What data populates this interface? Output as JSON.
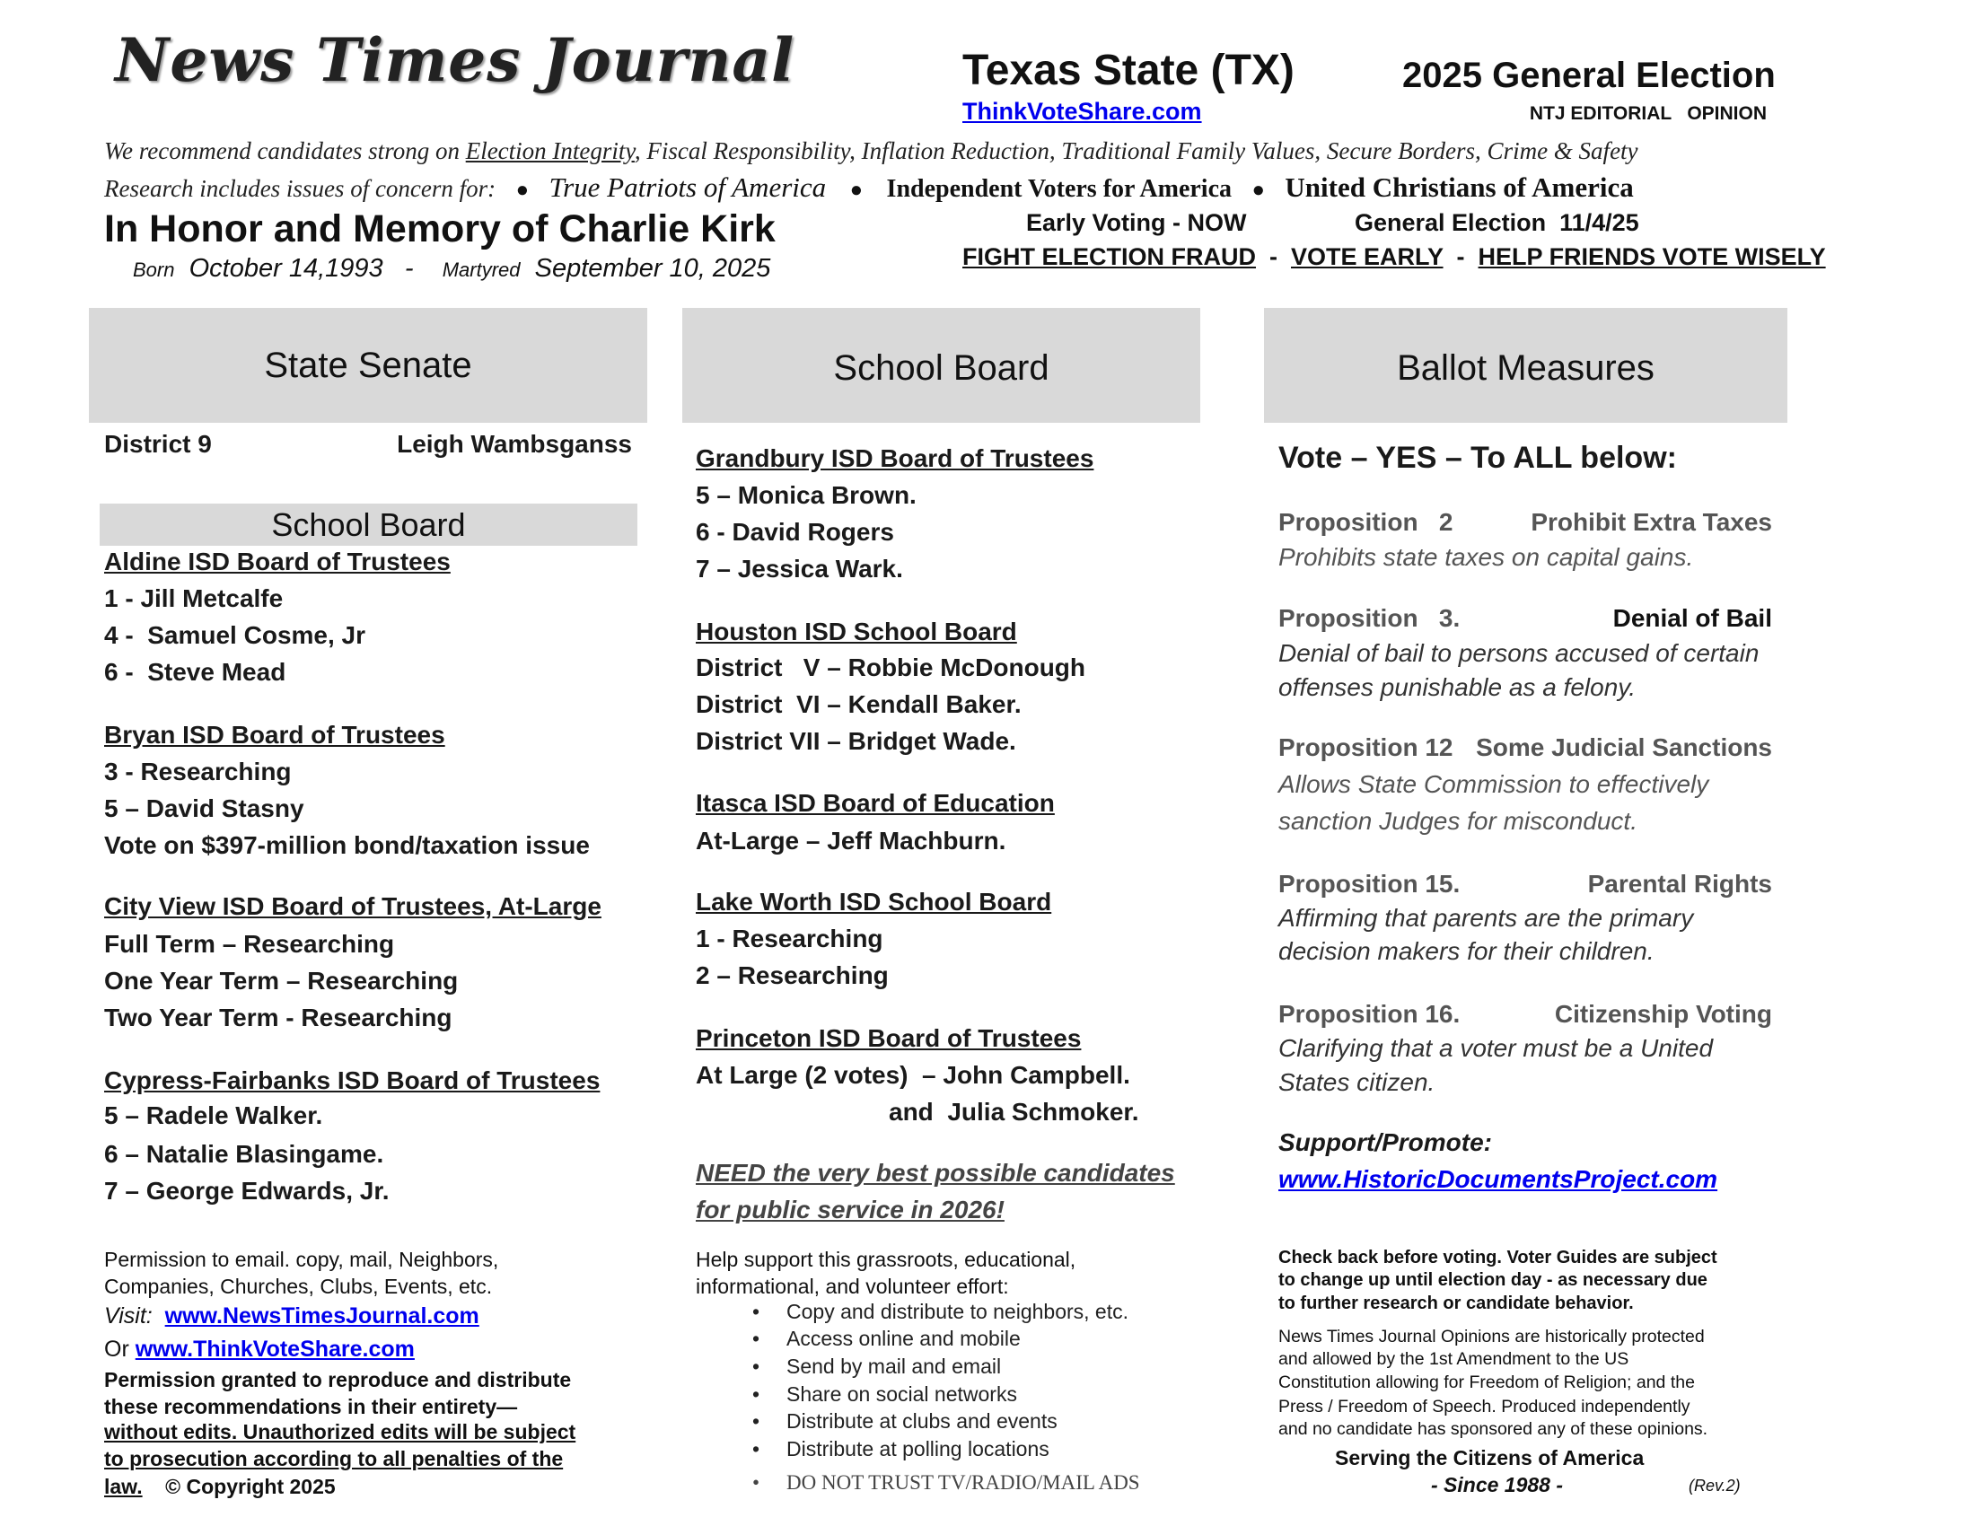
{
  "header": {
    "logo": "News Times Journal",
    "state": "Texas State (TX)",
    "election": "2025 General Election",
    "site_link": "ThinkVoteShare.com",
    "editorial": "NTJ EDITORIAL   OPINION",
    "recommend_prefix": "We recommend candidates strong on ",
    "recommend_underlined": "Election Integrity",
    "recommend_suffix": ", Fiscal Responsibility, Inflation Reduction, Traditional Family Values, Secure Borders, Crime & Safety",
    "research_prefix": "Research includes issues of concern for:",
    "orgs": [
      "True Patriots of America",
      "Independent Voters for America",
      "United Christians of America"
    ],
    "honor": "In Honor and Memory of Charlie Kirk",
    "born_label": "Born",
    "born_date": "October 14,1993",
    "martyred_label": "Martyred",
    "martyred_date": "September 10, 2025",
    "early_voting": "Early Voting - NOW",
    "general_election": "General Election  11/4/25",
    "slogans": [
      "FIGHT ELECTION FRAUD",
      "VOTE EARLY",
      "HELP FRIENDS VOTE WISELY"
    ]
  },
  "col1": {
    "header": "State Senate",
    "district_label": "District 9",
    "district_candidate": "Leigh Wambsganss",
    "subheader": "School Board",
    "lines": [
      {
        "t": "Aldine ISD Board of Trustees",
        "u": true
      },
      {
        "t": "1 - Jill Metcalfe"
      },
      {
        "t": "4 -  Samuel Cosme, Jr"
      },
      {
        "t": "6 -  Steve Mead"
      },
      {
        "t": "Bryan ISD Board of Trustees",
        "u": true
      },
      {
        "t": "3 - Researching"
      },
      {
        "t": "5 – David Stasny"
      },
      {
        "t": "Vote on $397-million bond/taxation issue"
      },
      {
        "t": "City View ISD Board of Trustees, At-Large",
        "u": true
      },
      {
        "t": "Full Term – Researching"
      },
      {
        "t": "One Year Term – Researching"
      },
      {
        "t": "Two Year Term - Researching"
      },
      {
        "t": "Cypress-Fairbanks ISD Board of Trustees",
        "u": true
      },
      {
        "t": "5 – Radele Walker."
      },
      {
        "t": "6 – Natalie Blasingame."
      },
      {
        "t": "7 – George Edwards, Jr."
      }
    ],
    "footer": {
      "permission1": "Permission to email. copy, mail, Neighbors,",
      "permission2": "Companies, Churches, Clubs, Events, etc.",
      "visit_label": "Visit:",
      "visit_link": "www.NewsTimesJournal.com",
      "or_label": "Or",
      "or_link": "www.ThinkVoteShare.com",
      "granted1": "Permission granted to reproduce and distribute",
      "granted2": "these recommendations in their entirety—",
      "granted3": "without edits. Unauthorized edits will be subject",
      "granted4": "to prosecution according to all penalties of the",
      "granted5": "law.",
      "copyright": "© Copyright 2025"
    }
  },
  "col2": {
    "header": "School Board",
    "lines": [
      {
        "t": "Grandbury ISD Board of Trustees",
        "u": true
      },
      {
        "t": "5 – Monica Brown."
      },
      {
        "t": "6 - David Rogers"
      },
      {
        "t": "7 – Jessica Wark."
      },
      {
        "t": "Houston ISD School Board",
        "u": true
      },
      {
        "t": "District   V – Robbie McDonough"
      },
      {
        "t": "District  VI – Kendall Baker."
      },
      {
        "t": "District VII – Bridget Wade."
      },
      {
        "t": "Itasca ISD Board of Education",
        "u": true
      },
      {
        "t": "At-Large – Jeff Machburn."
      },
      {
        "t": "Lake Worth ISD School Board",
        "u": true
      },
      {
        "t": "1 - Researching"
      },
      {
        "t": "2 – Researching"
      },
      {
        "t": "Princeton ISD Board of Trustees",
        "u": true
      },
      {
        "t": "At Large (2 votes)  – John Campbell."
      },
      {
        "t": "and  Julia Schmoker."
      }
    ],
    "need1": "NEED the very best possible candidates",
    "need2": "for public service in 2026!",
    "help1": "Help support this grassroots, educational,",
    "help2": "informational, and volunteer effort:",
    "bullets": [
      "Copy and distribute to neighbors, etc.",
      "Access online and mobile",
      "Send by mail and email",
      "Share on social networks",
      "Distribute at clubs and events",
      "Distribute at polling locations",
      "DO NOT TRUST TV/RADIO/MAIL ADS"
    ]
  },
  "col3": {
    "header": "Ballot Measures",
    "vote_all": "Vote – YES – To ALL below:",
    "props": [
      {
        "num": "Proposition   2",
        "title": "Prohibit Extra Taxes",
        "desc": [
          "Prohibits state taxes on capital gains."
        ]
      },
      {
        "num": "Proposition   3.",
        "title": "Denial of Bail",
        "desc": [
          "Denial of bail to persons accused of certain",
          "offenses punishable as a felony."
        ]
      },
      {
        "num": "Proposition 12",
        "title": "Some Judicial Sanctions",
        "desc": [
          "Allows State Commission to effectively",
          "sanction Judges for misconduct."
        ]
      },
      {
        "num": "Proposition 15.",
        "title": "Parental Rights",
        "desc": [
          "Affirming that parents are the primary",
          "decision makers for their children."
        ]
      },
      {
        "num": "Proposition 16.",
        "title": "Citizenship Voting",
        "desc": [
          "Clarifying that a voter must be a United",
          "States citizen."
        ]
      }
    ],
    "support_label": "Support/Promote:",
    "support_link": "www.HistoricDocumentsProject.com",
    "check": [
      "Check back before voting. Voter Guides are subject",
      "to change up until election day - as necessary due",
      "to further research or candidate behavior."
    ],
    "legal": [
      "News Times Journal Opinions are historically protected",
      "and allowed by the 1st Amendment to the US",
      "Constitution allowing for Freedom of Religion; and the",
      "Press / Freedom of Speech. Produced independently",
      "and no candidate has sponsored any of these opinions."
    ],
    "serving": "Serving the Citizens of America",
    "since": "- Since 1988 -",
    "rev": "(Rev.2)"
  }
}
